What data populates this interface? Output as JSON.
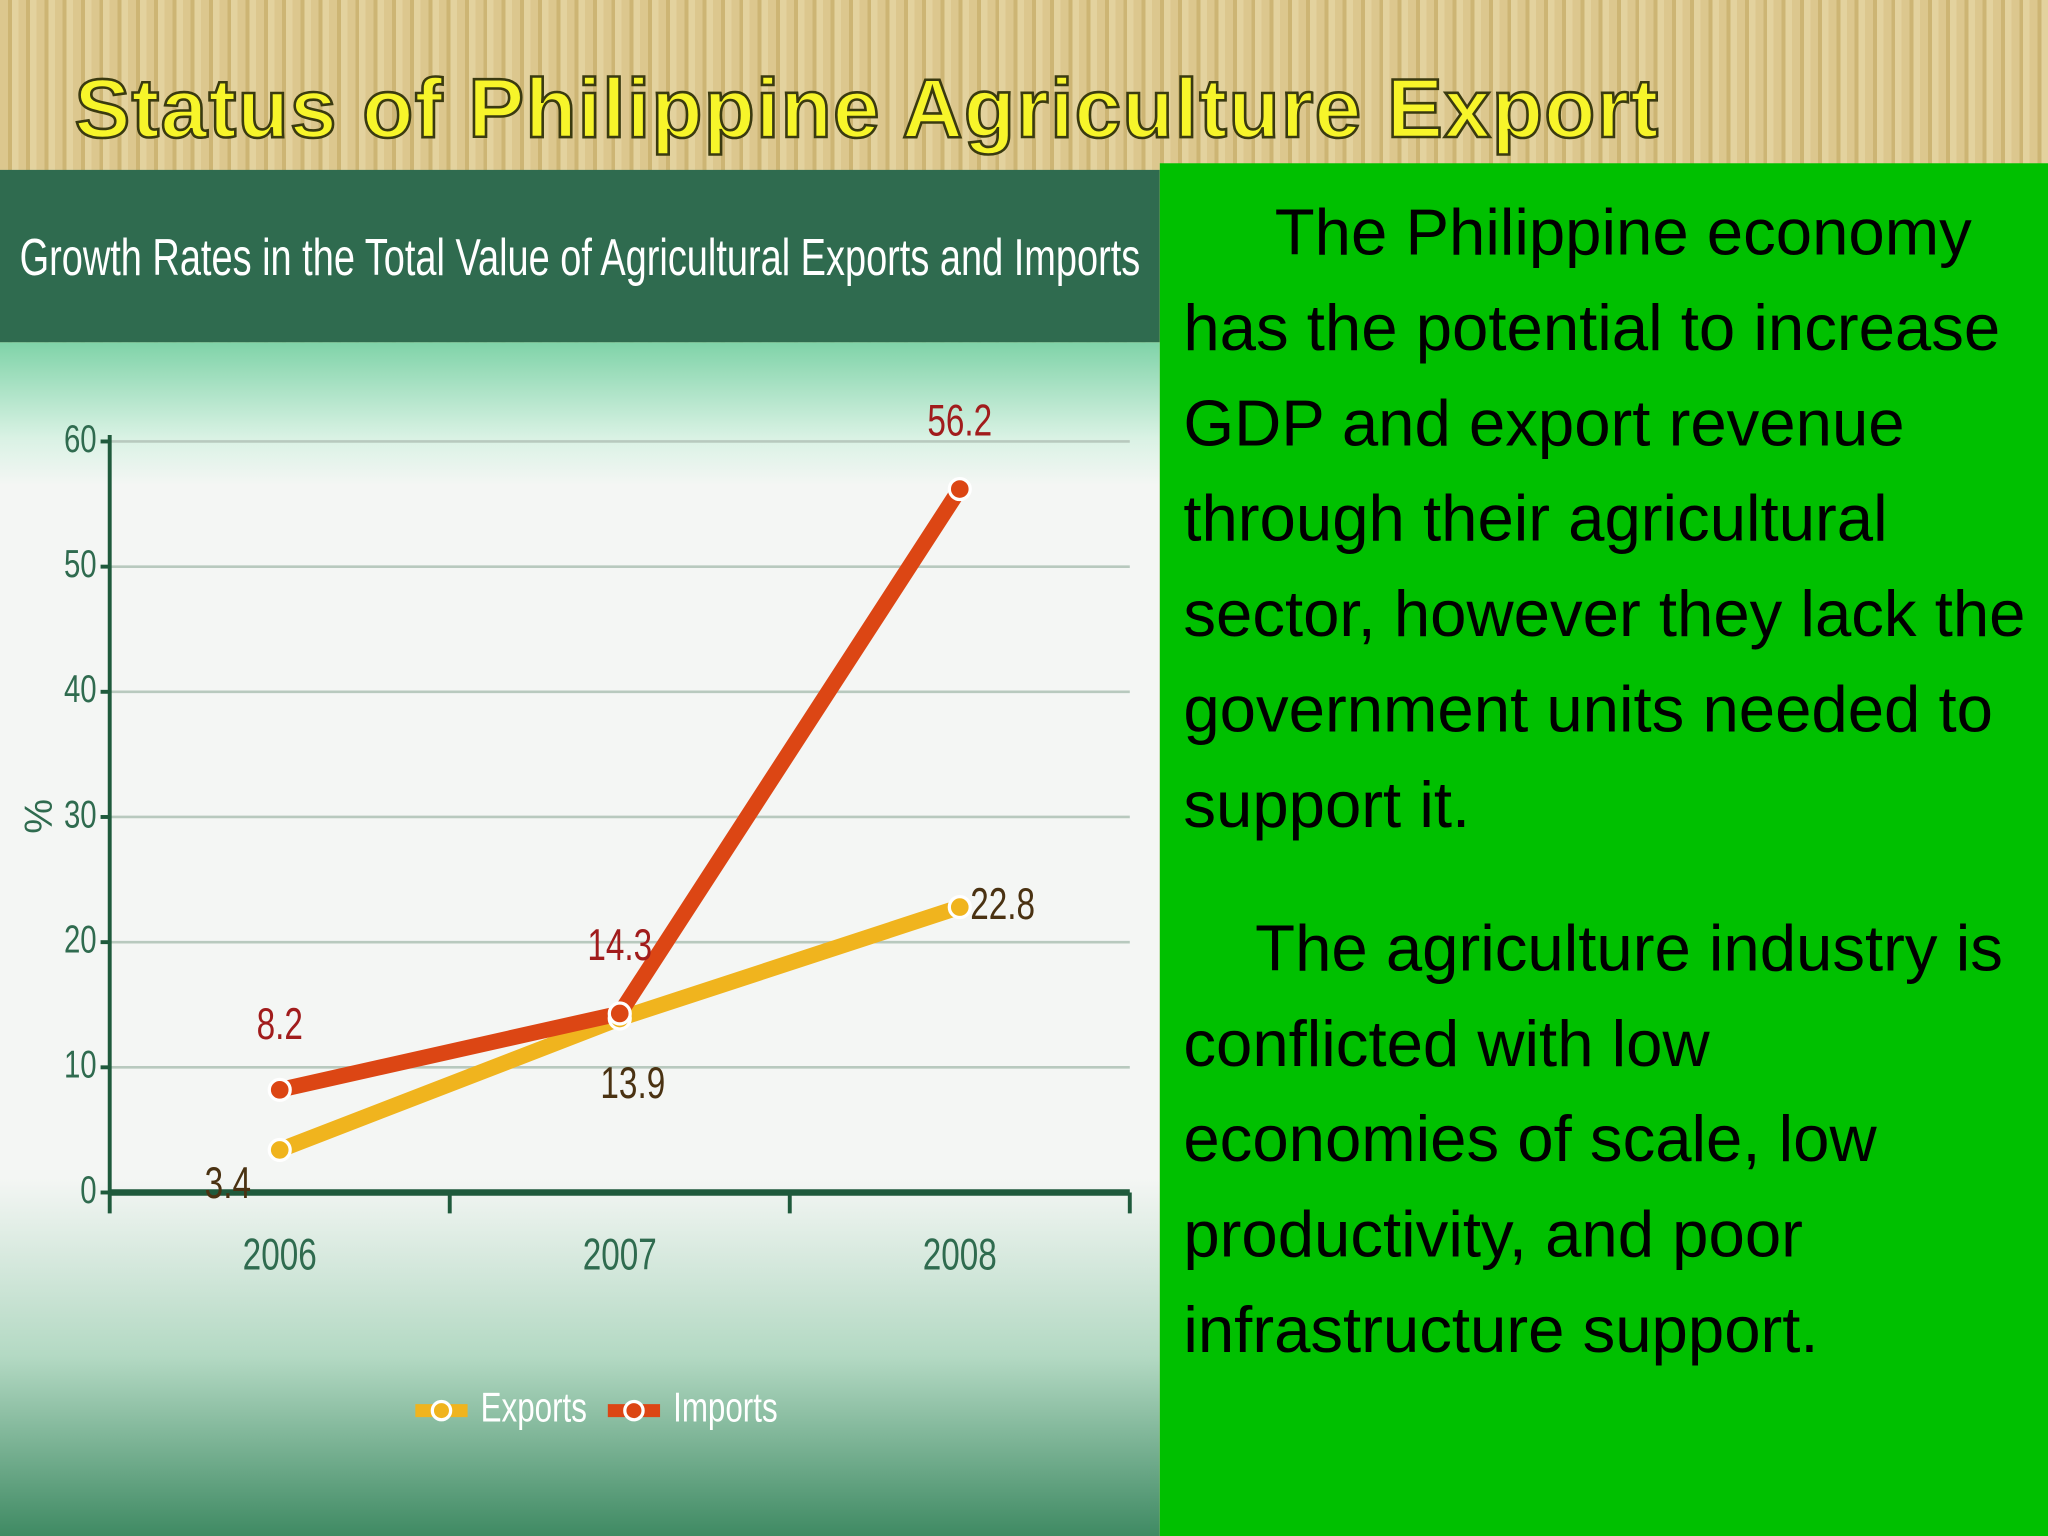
{
  "slide": {
    "title": "Status of Philippine Agriculture Export",
    "paragraphs": [
      "The Philippine economy has the potential to increase GDP and export revenue through their agricultural sector, however they lack the government units needed to support it.",
      "The agriculture industry is conflicted with low economies of scale, low productivity, and poor infrastructure support."
    ]
  },
  "chart_data": {
    "type": "line",
    "title": "Growth Rates in the Total Value of Agricultural Exports and Imports",
    "y_label": "%",
    "categories": [
      "2006",
      "2007",
      "2008"
    ],
    "series": [
      {
        "name": "Exports",
        "color": "#f0b41e",
        "values": [
          3.4,
          13.9,
          22.8
        ]
      },
      {
        "name": "Imports",
        "color": "#dc4614",
        "values": [
          8.2,
          14.3,
          56.2
        ]
      }
    ],
    "ylim": [
      0,
      60
    ],
    "yticks": [
      0,
      10,
      20,
      30,
      40,
      50,
      60
    ],
    "grid": true,
    "legend": "bottom",
    "data_labels": true
  }
}
